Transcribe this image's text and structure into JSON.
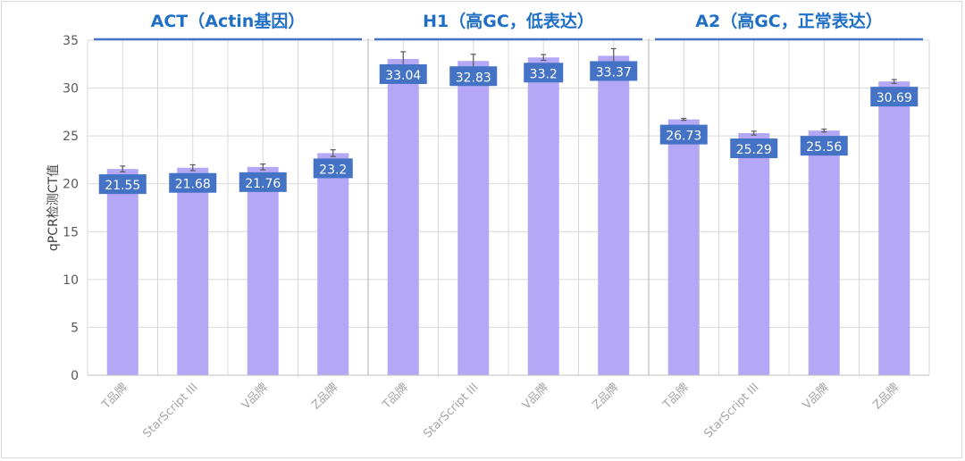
{
  "chart_data": {
    "type": "bar",
    "ylabel": "qPCR检测CT值",
    "xlabel": "",
    "ylim": [
      0,
      35
    ],
    "yticks": [
      0,
      5,
      10,
      15,
      20,
      25,
      30,
      35
    ],
    "grid": true,
    "groups": [
      {
        "title": "ACT（Actin基因）",
        "categories": [
          "T品牌",
          "StarScript III",
          "V品牌",
          "Z品牌"
        ],
        "values": [
          21.55,
          21.68,
          21.76,
          23.2
        ],
        "errors": [
          0.3,
          0.3,
          0.3,
          0.35
        ]
      },
      {
        "title": "H1（高GC，低表达）",
        "categories": [
          "T品牌",
          "StarScript III",
          "V品牌",
          "Z品牌"
        ],
        "values": [
          33.04,
          32.83,
          33.2,
          33.37
        ],
        "errors": [
          0.75,
          0.7,
          0.3,
          0.75
        ]
      },
      {
        "title": "A2（高GC，正常表达）",
        "categories": [
          "T品牌",
          "StarScript III",
          "V品牌",
          "Z品牌"
        ],
        "values": [
          26.73,
          25.29,
          25.56,
          30.69
        ],
        "errors": [
          0.1,
          0.2,
          0.15,
          0.2
        ]
      }
    ],
    "colors": {
      "bar": "#b4a7f5",
      "label_bg": "#4472c4",
      "label_text": "#ffffff",
      "group_title": "#1f6fc5",
      "group_line": "#4472c4",
      "grid": "#d9d9d9",
      "error": "#595959"
    }
  }
}
